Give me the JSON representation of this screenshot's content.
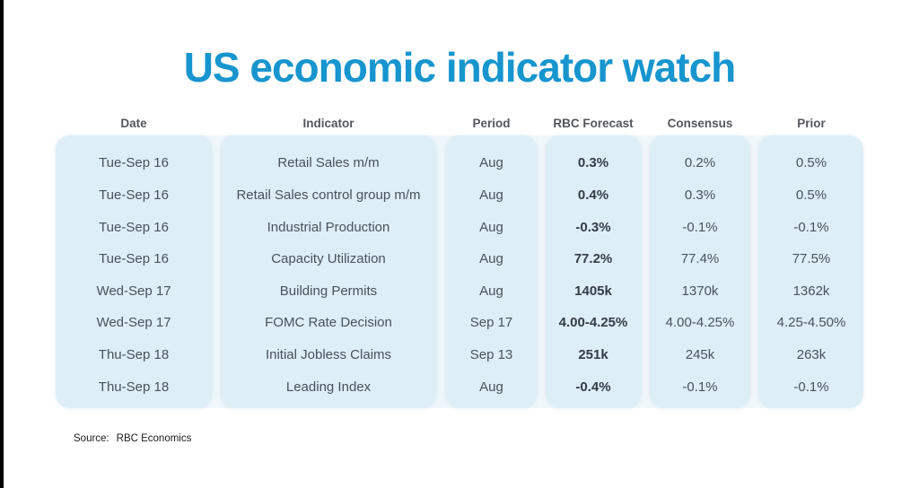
{
  "chart_data": {
    "type": "table",
    "title": "US economic indicator watch",
    "columns": [
      {
        "id": "date",
        "label": "Date"
      },
      {
        "id": "indicator",
        "label": "Indicator"
      },
      {
        "id": "period",
        "label": "Period"
      },
      {
        "id": "rbc_forecast",
        "label": "RBC Forecast"
      },
      {
        "id": "consensus",
        "label": "Consensus"
      },
      {
        "id": "prior",
        "label": "Prior"
      }
    ],
    "rows": [
      {
        "date": "Tue-Sep 16",
        "indicator": "Retail Sales m/m",
        "period": "Aug",
        "rbc_forecast": "0.3%",
        "consensus": "0.2%",
        "prior": "0.5%"
      },
      {
        "date": "Tue-Sep 16",
        "indicator": "Retail Sales control group m/m",
        "period": "Aug",
        "rbc_forecast": "0.4%",
        "consensus": "0.3%",
        "prior": "0.5%"
      },
      {
        "date": "Tue-Sep 16",
        "indicator": "Industrial Production",
        "period": "Aug",
        "rbc_forecast": "-0.3%",
        "consensus": "-0.1%",
        "prior": "-0.1%"
      },
      {
        "date": "Tue-Sep 16",
        "indicator": "Capacity Utilization",
        "period": "Aug",
        "rbc_forecast": "77.2%",
        "consensus": "77.4%",
        "prior": "77.5%"
      },
      {
        "date": "Wed-Sep 17",
        "indicator": "Building Permits",
        "period": "Aug",
        "rbc_forecast": "1405k",
        "consensus": "1370k",
        "prior": "1362k"
      },
      {
        "date": "Wed-Sep 17",
        "indicator": "FOMC Rate Decision",
        "period": "Sep 17",
        "rbc_forecast": "4.00-4.25%",
        "consensus": "4.00-4.25%",
        "prior": "4.25-4.50%"
      },
      {
        "date": "Thu-Sep 18",
        "indicator": "Initial Jobless Claims",
        "period": "Sep 13",
        "rbc_forecast": "251k",
        "consensus": "245k",
        "prior": "263k"
      },
      {
        "date": "Thu-Sep 18",
        "indicator": "Leading Index",
        "period": "Aug",
        "rbc_forecast": "-0.4%",
        "consensus": "-0.1%",
        "prior": "-0.1%"
      }
    ],
    "emphasis": {
      "bold_column_id": "rbc_forecast"
    },
    "source": {
      "label": "Source:",
      "text": "RBC Economics"
    },
    "legend_position": "none",
    "grid": "off"
  },
  "colors": {
    "title": "#1795ce",
    "band": "#ddeef7",
    "band_backdrop": "#eff7fb",
    "header_text": "#54565a",
    "cell_text": "#49525b",
    "cell_text_bold": "#343b44",
    "source_text": "#1c1c1c",
    "left_bar": "#000000"
  }
}
